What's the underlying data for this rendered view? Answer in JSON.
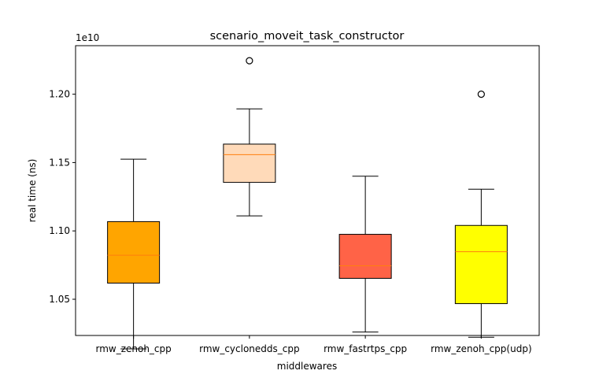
{
  "chart_data": {
    "type": "box",
    "title": "scenario_moveit_task_constructor",
    "xlabel": "middlewares",
    "ylabel": "real time (ns)",
    "offset_label": "1e10",
    "ylim": [
      1.0235,
      1.2355
    ],
    "yticks": [
      1.05,
      1.1,
      1.15,
      1.2
    ],
    "ytick_labels": [
      "1.05",
      "1.10",
      "1.15",
      "1.20"
    ],
    "median_color": "#ff7f0e",
    "categories": [
      "rmw_zenoh_cpp",
      "rmw_cyclonedds_cpp",
      "rmw_fastrtps_cpp",
      "rmw_zenoh_cpp(udp)"
    ],
    "boxes": [
      {
        "name": "rmw_zenoh_cpp",
        "color": "#ffa500",
        "whisker_low": 1.0137,
        "q1": 1.0618,
        "median": 1.0822,
        "q3": 1.1068,
        "whisker_high": 1.1525,
        "outliers": []
      },
      {
        "name": "rmw_cyclonedds_cpp",
        "color": "#ffdab9",
        "whisker_low": 1.111,
        "q1": 1.1355,
        "median": 1.1558,
        "q3": 1.1635,
        "whisker_high": 1.1893,
        "outliers": [
          1.2245
        ]
      },
      {
        "name": "rmw_fastrtps_cpp",
        "color": "#ff6347",
        "whisker_low": 1.026,
        "q1": 1.0653,
        "median": 1.0745,
        "q3": 1.0975,
        "whisker_high": 1.14,
        "outliers": []
      },
      {
        "name": "rmw_zenoh_cpp(udp)",
        "color": "#ffff00",
        "whisker_low": 1.0222,
        "q1": 1.0468,
        "median": 1.0848,
        "q3": 1.104,
        "whisker_high": 1.1305,
        "outliers": [
          1.2
        ]
      }
    ]
  }
}
